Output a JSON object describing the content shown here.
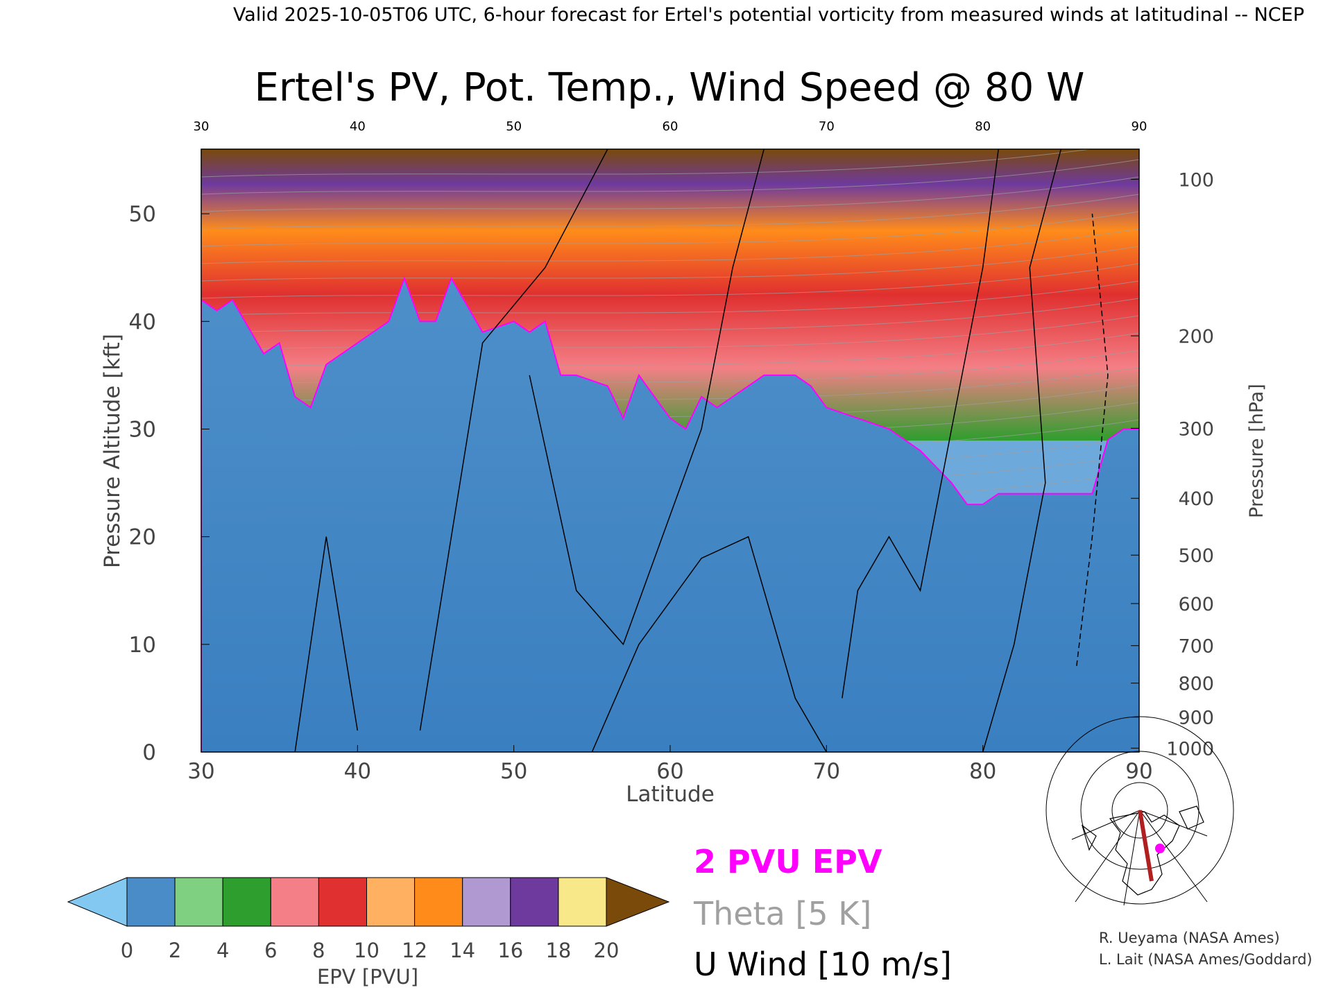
{
  "header": {
    "valid_line": "Valid 2025-10-05T06 UTC, 6-hour forecast for Ertel's potential vorticity from measured winds at latitudinal -- NCEP"
  },
  "chart_data": {
    "type": "heatmap",
    "title": "Ertel's PV, Pot. Temp., Wind Speed @ 80 W",
    "xlabel": "Latitude",
    "ylabel_left": "Pressure Altitude [kft]",
    "ylabel_right": "Pressure [hPa]",
    "xlim": [
      30,
      90
    ],
    "ylim": [
      0,
      56
    ],
    "x_ticks": [
      30,
      40,
      50,
      60,
      70,
      80,
      90
    ],
    "y_ticks_left": [
      0,
      10,
      20,
      30,
      40,
      50
    ],
    "pressure_ticks": [
      {
        "hpa": 1000,
        "kft": 0.36
      },
      {
        "hpa": 900,
        "kft": 3.24
      },
      {
        "hpa": 800,
        "kft": 6.4
      },
      {
        "hpa": 700,
        "kft": 9.88
      },
      {
        "hpa": 600,
        "kft": 13.79
      },
      {
        "hpa": 500,
        "kft": 18.29
      },
      {
        "hpa": 400,
        "kft": 23.57
      },
      {
        "hpa": 300,
        "kft": 30.07
      },
      {
        "hpa": 200,
        "kft": 38.66
      },
      {
        "hpa": 100,
        "kft": 53.2
      }
    ],
    "pv_2pvu_tropopause": {
      "x": [
        30,
        31,
        32,
        34,
        35,
        36,
        37,
        38,
        40,
        42,
        43,
        44,
        45,
        46,
        48,
        50,
        51,
        52,
        53,
        54,
        56,
        57,
        58,
        59,
        60,
        61,
        62,
        63,
        64,
        65,
        66,
        67,
        68,
        69,
        70,
        72,
        74,
        76,
        78,
        79,
        80,
        81,
        82,
        84,
        86,
        87,
        88,
        89,
        90
      ],
      "y": [
        42,
        41,
        42,
        37,
        38,
        33,
        32,
        36,
        38,
        40,
        44,
        40,
        40,
        44,
        39,
        40,
        39,
        40,
        35,
        35,
        34,
        31,
        35,
        33,
        31,
        30,
        33,
        32,
        33,
        34,
        35,
        35,
        35,
        34,
        32,
        31,
        30,
        28,
        25,
        23,
        23,
        24,
        24,
        24,
        24,
        24,
        29,
        30,
        30
      ]
    },
    "pv_colorbar": {
      "label": "EPV [PVU]",
      "ticks": [
        0,
        2,
        4,
        6,
        8,
        10,
        12,
        14,
        16,
        18,
        20
      ],
      "colors": [
        "#82c8f0",
        "#4a8cc8",
        "#7fd080",
        "#2e9e2e",
        "#f47f86",
        "#e03030",
        "#ffb060",
        "#ff8c1a",
        "#b098d0",
        "#6e3a9e",
        "#f8e88a",
        "#7a4a0a"
      ]
    },
    "legend": {
      "pv_contour": "2 PVU EPV",
      "theta": "Theta [5 K]",
      "wind": "U Wind [10 m/s]",
      "pv_color": "#ff00ff",
      "theta_color": "#a0a0a0",
      "wind_color": "#000000"
    }
  },
  "credits": {
    "line1": "R. Ueyama (NASA Ames)",
    "line2": "L. Lait (NASA Ames/Goddard)"
  }
}
